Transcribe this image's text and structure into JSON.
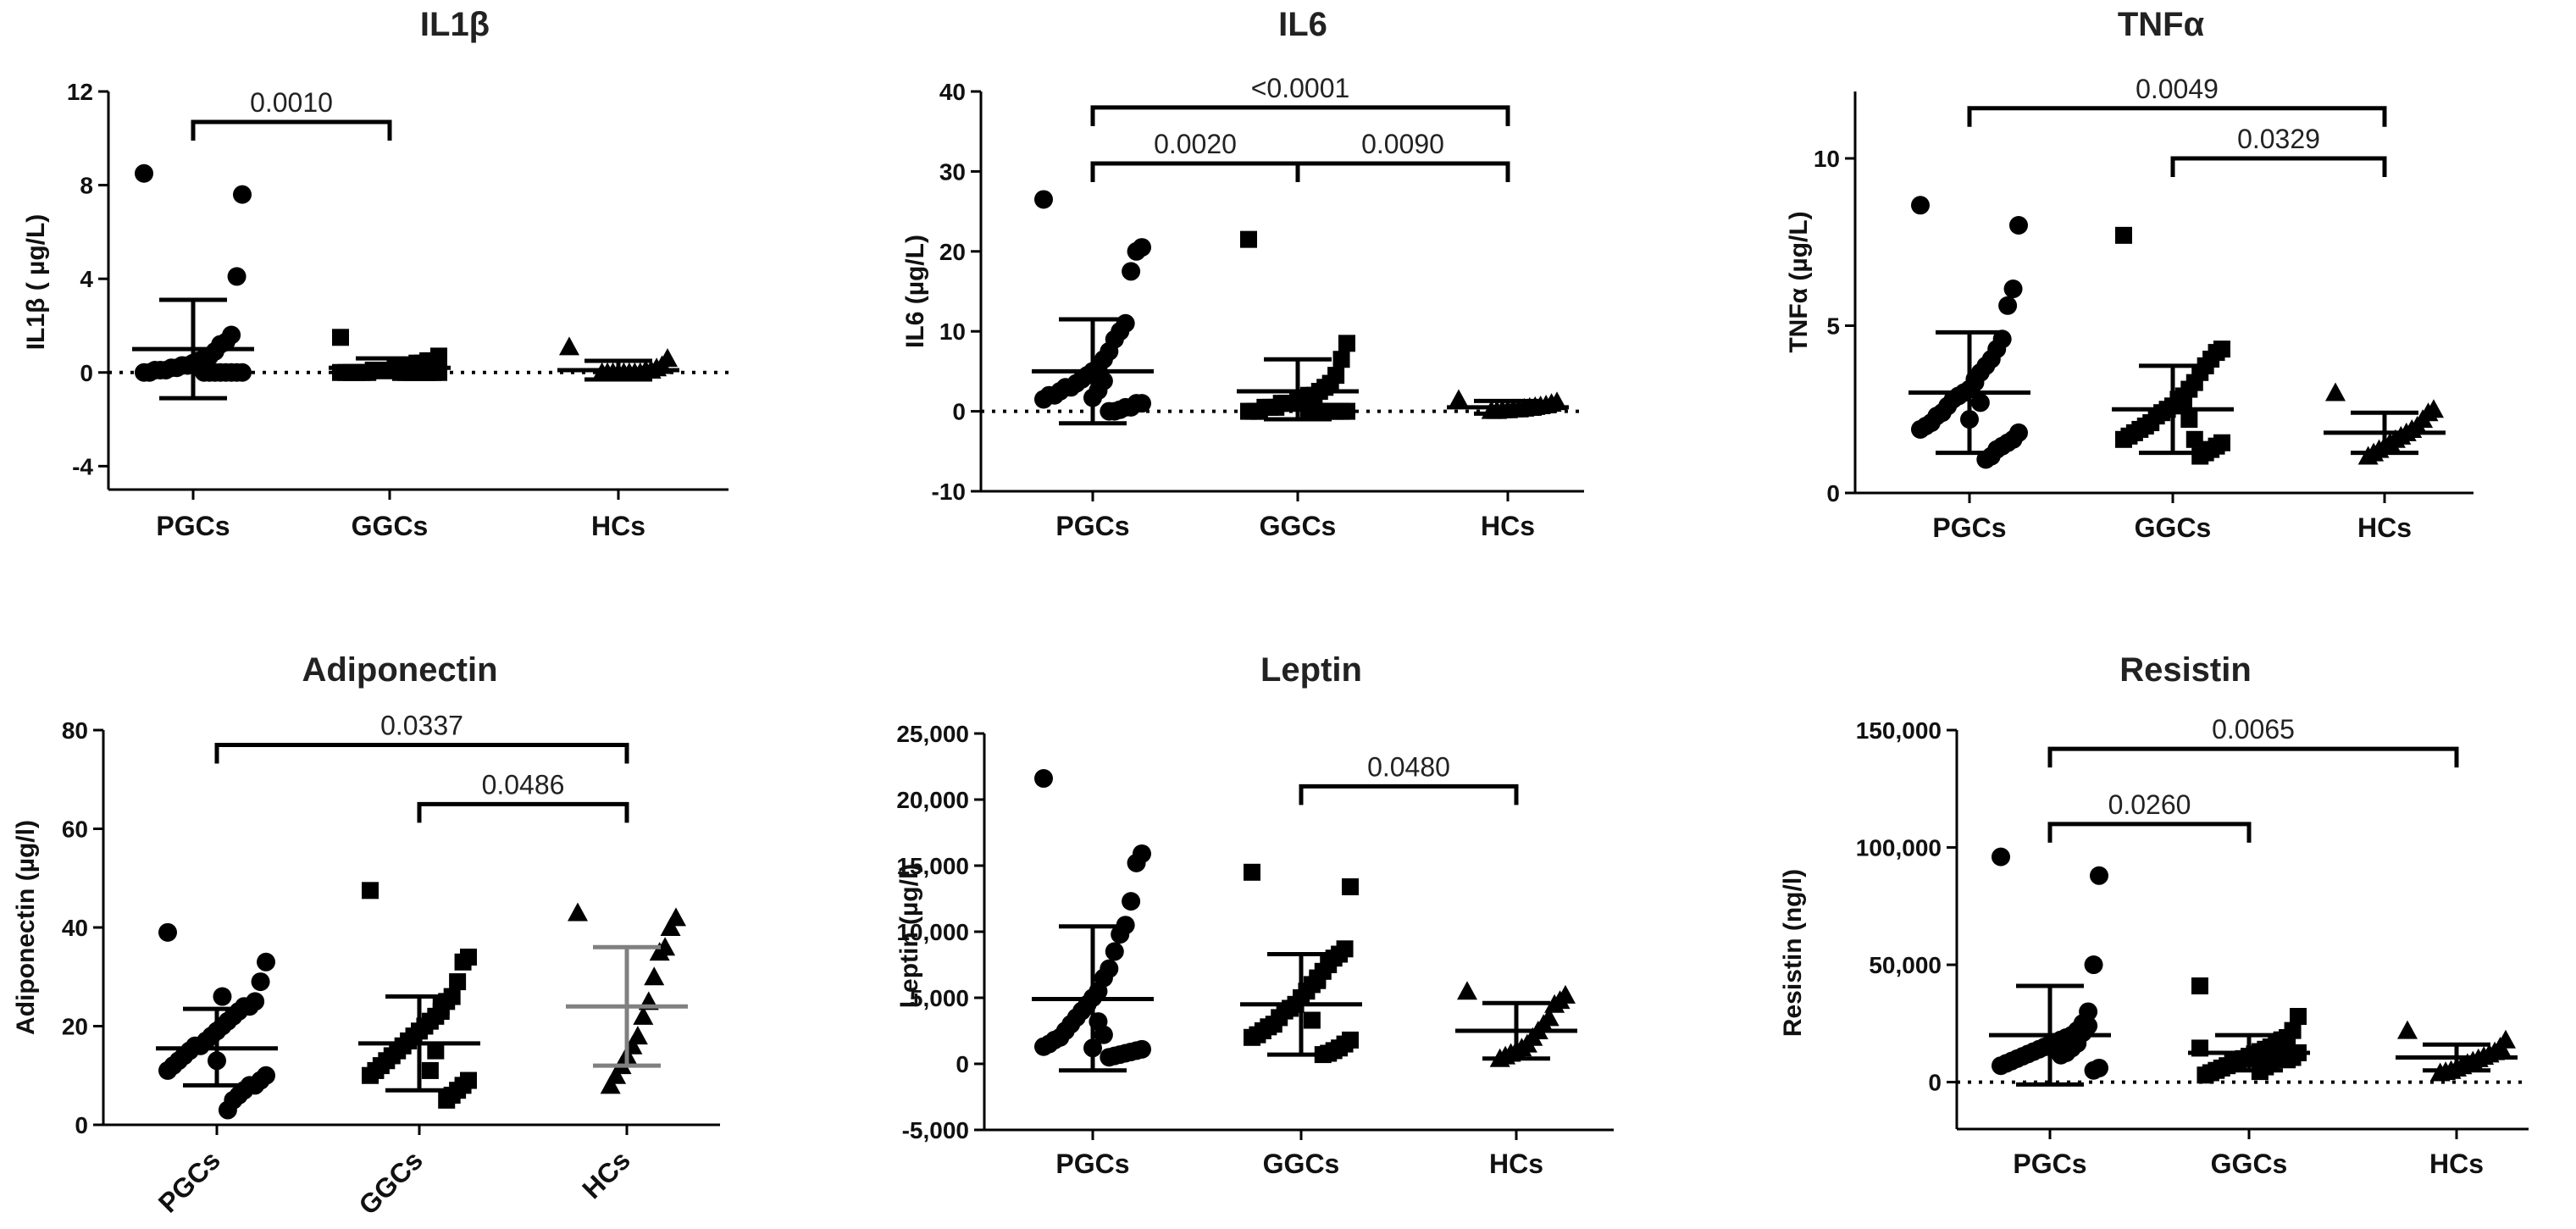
{
  "chart_data": [
    {
      "type": "scatter",
      "title": "IL1β",
      "ylabel": "IL1β ( µg/L)",
      "ylim": [
        -5,
        12
      ],
      "yticks": [
        -4,
        0,
        4,
        8,
        12
      ],
      "ytick_labels": [
        "-4",
        "0",
        "4",
        "8",
        "12"
      ],
      "categories": [
        "PGCs",
        "GGCs",
        "HCs"
      ],
      "x_rotated": false,
      "zero_line": true,
      "series": [
        {
          "name": "PGCs",
          "marker": "circle",
          "mean": 1.0,
          "sd_upper": 3.1,
          "sd_lower": -1.1,
          "values": [
            8.5,
            7.6,
            4.1,
            1.6,
            1.3,
            1.2,
            0.9,
            0.7,
            0.6,
            0.5,
            0.4,
            0.3,
            0.3,
            0.2,
            0.2,
            0.1,
            0.1,
            0.1,
            0.0,
            0.0,
            0.0,
            0.0,
            0.0,
            0.0,
            0.0,
            0.0,
            0.0,
            0.0
          ]
        },
        {
          "name": "GGCs",
          "marker": "square",
          "mean": 0.2,
          "sd_upper": 0.6,
          "sd_lower": -0.2,
          "values": [
            1.5,
            0.7,
            0.5,
            0.5,
            0.4,
            0.4,
            0.3,
            0.2,
            0.2,
            0.2,
            0.1,
            0.1,
            0.1,
            0.1,
            0.0,
            0.0,
            0.0,
            0.0,
            0.0,
            0.0,
            0.0,
            0.0,
            0.0,
            0.0,
            0.0,
            0.0,
            0.0,
            0.0
          ]
        },
        {
          "name": "HCs",
          "marker": "triangle",
          "mean": 0.1,
          "sd_upper": 0.5,
          "sd_lower": -0.3,
          "values": [
            1.1,
            0.6,
            0.3,
            0.2,
            0.1,
            0.1,
            0.0,
            0.0,
            0.0,
            0.0,
            0.0,
            0.0,
            0.0,
            0.0
          ]
        }
      ],
      "comparisons": [
        {
          "from": 0,
          "to": 1,
          "label": "0.0010",
          "y": 10.7
        }
      ]
    },
    {
      "type": "scatter",
      "title": "IL6",
      "ylabel": "IL6 (µg/L)",
      "ylim": [
        -10,
        40
      ],
      "yticks": [
        -10,
        0,
        10,
        20,
        30,
        40
      ],
      "ytick_labels": [
        "-10",
        "0",
        "10",
        "20",
        "30",
        "40"
      ],
      "categories": [
        "PGCs",
        "GGCs",
        "HCs"
      ],
      "x_rotated": false,
      "zero_line": true,
      "series": [
        {
          "name": "PGCs",
          "marker": "circle",
          "mean": 5.0,
          "sd_upper": 11.5,
          "sd_lower": -1.5,
          "values": [
            26.5,
            20.5,
            20.0,
            17.5,
            11.0,
            10.0,
            9.0,
            7.5,
            6.5,
            5.5,
            5.0,
            4.5,
            4.0,
            3.5,
            3.0,
            3.0,
            2.5,
            2.0,
            2.0,
            1.5,
            1.0,
            1.0,
            0.5,
            0.5,
            0.2,
            0.0,
            0.0,
            3.8,
            2.6,
            1.7
          ]
        },
        {
          "name": "GGCs",
          "marker": "square",
          "mean": 2.5,
          "sd_upper": 6.5,
          "sd_lower": -1.0,
          "values": [
            21.5,
            8.5,
            6.5,
            4.5,
            3.5,
            3.0,
            2.5,
            2.0,
            2.0,
            1.5,
            1.5,
            1.0,
            1.0,
            1.0,
            0.5,
            0.5,
            0.5,
            0.0,
            0.0,
            0.0,
            0.0,
            0.0,
            0.0,
            0.0,
            0.0,
            0.0,
            0.0,
            0.0
          ]
        },
        {
          "name": "HCs",
          "marker": "triangle",
          "mean": 0.5,
          "sd_upper": 1.3,
          "sd_lower": -0.3,
          "values": [
            1.5,
            1.2,
            1.0,
            0.8,
            0.7,
            0.6,
            0.5,
            0.4,
            0.3,
            0.3,
            0.2,
            0.2,
            0.1,
            0.1
          ]
        }
      ],
      "comparisons": [
        {
          "from": 0,
          "to": 2,
          "label": "<0.0001",
          "y": 38.0
        },
        {
          "from": 0,
          "to": 1,
          "label": "0.0020",
          "y": 31.0
        },
        {
          "from": 1,
          "to": 2,
          "label": "0.0090",
          "y": 31.0
        }
      ]
    },
    {
      "type": "scatter",
      "title": "TNFα",
      "ylabel": "TNFα  (µg/L)",
      "ylim": [
        0,
        12
      ],
      "yticks": [
        0,
        5,
        10
      ],
      "ytick_labels": [
        "0",
        "5",
        "10"
      ],
      "categories": [
        "PGCs",
        "GGCs",
        "HCs"
      ],
      "x_rotated": false,
      "zero_line": false,
      "series": [
        {
          "name": "PGCs",
          "marker": "circle",
          "mean": 3.0,
          "sd_upper": 4.8,
          "sd_lower": 1.2,
          "values": [
            8.6,
            8.0,
            6.1,
            5.6,
            4.6,
            4.3,
            4.0,
            3.8,
            3.6,
            3.3,
            3.1,
            3.0,
            2.9,
            2.8,
            2.6,
            2.4,
            2.3,
            2.1,
            2.0,
            1.9,
            1.8,
            1.6,
            1.5,
            1.4,
            1.3,
            1.1,
            1.0,
            2.7,
            3.4,
            2.2
          ]
        },
        {
          "name": "GGCs",
          "marker": "square",
          "mean": 2.5,
          "sd_upper": 3.8,
          "sd_lower": 1.2,
          "values": [
            7.7,
            4.3,
            4.2,
            4.0,
            3.8,
            3.6,
            3.3,
            3.1,
            2.9,
            2.8,
            2.6,
            2.5,
            2.4,
            2.3,
            2.1,
            2.0,
            1.9,
            1.8,
            1.7,
            1.6,
            1.5,
            1.4,
            1.3,
            1.2,
            1.1,
            1.6,
            2.2,
            2.7
          ]
        },
        {
          "name": "HCs",
          "marker": "triangle",
          "mean": 1.8,
          "sd_upper": 2.4,
          "sd_lower": 1.2,
          "values": [
            3.0,
            2.5,
            2.4,
            2.2,
            2.0,
            1.9,
            1.8,
            1.7,
            1.6,
            1.5,
            1.4,
            1.3,
            1.2,
            1.1
          ]
        }
      ],
      "comparisons": [
        {
          "from": 0,
          "to": 2,
          "label": "0.0049",
          "y": 11.5
        },
        {
          "from": 1,
          "to": 2,
          "label": "0.0329",
          "y": 10.0
        }
      ]
    },
    {
      "type": "scatter",
      "title": "Adiponectin",
      "ylabel": "Adiponectin (µg/l)",
      "ylim": [
        0,
        80
      ],
      "yticks": [
        0,
        20,
        40,
        60,
        80
      ],
      "ytick_labels": [
        "0",
        "20",
        "40",
        "60",
        "80"
      ],
      "categories": [
        "PGCs",
        "GGCs",
        "HCs"
      ],
      "x_rotated": true,
      "zero_line": false,
      "series": [
        {
          "name": "PGCs",
          "marker": "circle",
          "mean": 15.5,
          "sd_upper": 23.5,
          "sd_lower": 8.0,
          "values": [
            39,
            33,
            29,
            25,
            24,
            24,
            23,
            22,
            21,
            20,
            19,
            18,
            17,
            16,
            16,
            15,
            14,
            13,
            12,
            11,
            10,
            9,
            8,
            8,
            7,
            6,
            5,
            3,
            26,
            13
          ]
        },
        {
          "name": "GGCs",
          "marker": "square",
          "mean": 16.5,
          "sd_upper": 26.0,
          "sd_lower": 7.0,
          "values": [
            47.5,
            34,
            33,
            29,
            26,
            25,
            24,
            22,
            21,
            20,
            19,
            18,
            17,
            16,
            15,
            14,
            13,
            12,
            11,
            10,
            9,
            8,
            7,
            6,
            5,
            23,
            15,
            11
          ]
        },
        {
          "name": "HCs",
          "marker": "triangle",
          "mean": 24.0,
          "sd_upper": 36.0,
          "sd_lower": 12.0,
          "values": [
            43,
            42,
            40,
            36,
            35,
            30,
            25,
            22,
            18,
            16,
            14,
            12,
            10,
            8
          ]
        }
      ],
      "comparisons": [
        {
          "from": 0,
          "to": 2,
          "label": "0.0337",
          "y": 77.0
        },
        {
          "from": 1,
          "to": 2,
          "label": "0.0486",
          "y": 65.0
        }
      ]
    },
    {
      "type": "scatter",
      "title": "Leptin",
      "ylabel": "Leptin (µg/l)",
      "ylim": [
        -5000,
        25000
      ],
      "yticks": [
        -5000,
        0,
        5000,
        10000,
        15000,
        20000,
        25000
      ],
      "ytick_labels": [
        "-5,000",
        "0",
        "5,000",
        "10,000",
        "15,000",
        "20,000",
        "25,000"
      ],
      "categories": [
        "PGCs",
        "GGCs",
        "HCs"
      ],
      "x_rotated": false,
      "zero_line": false,
      "series": [
        {
          "name": "PGCs",
          "marker": "circle",
          "mean": 4900,
          "sd_upper": 10400,
          "sd_lower": -500,
          "values": [
            21600,
            15900,
            15200,
            12300,
            10500,
            9800,
            8500,
            7200,
            6500,
            5500,
            5000,
            4500,
            4000,
            3500,
            3000,
            2500,
            2000,
            1800,
            1500,
            1300,
            1100,
            1000,
            900,
            800,
            700,
            600,
            500,
            2200,
            3200,
            1200
          ]
        },
        {
          "name": "GGCs",
          "marker": "square",
          "mean": 4500,
          "sd_upper": 8300,
          "sd_lower": 700,
          "values": [
            14500,
            13400,
            8700,
            8300,
            8000,
            7500,
            7000,
            6500,
            6000,
            5500,
            5000,
            4500,
            4200,
            4000,
            3500,
            3000,
            2800,
            2500,
            2200,
            2000,
            1800,
            1500,
            1200,
            1000,
            800,
            700,
            6300,
            3300
          ]
        },
        {
          "name": "HCs",
          "marker": "triangle",
          "mean": 2500,
          "sd_upper": 4600,
          "sd_lower": 400,
          "values": [
            5500,
            5200,
            4800,
            4500,
            3500,
            3000,
            2500,
            2000,
            1500,
            1200,
            1000,
            800,
            600,
            400
          ]
        }
      ],
      "comparisons": [
        {
          "from": 1,
          "to": 2,
          "label": "0.0480",
          "y": 21000
        }
      ]
    },
    {
      "type": "scatter",
      "title": "Resistin",
      "ylabel": "Resistin (ng/l)",
      "ylim": [
        -20000,
        150000
      ],
      "yticks": [
        0,
        50000,
        100000,
        150000
      ],
      "ytick_labels": [
        "0",
        "50,000",
        "100,000",
        "150,000"
      ],
      "categories": [
        "PGCs",
        "GGCs",
        "HCs"
      ],
      "x_rotated": false,
      "zero_line": true,
      "series": [
        {
          "name": "PGCs",
          "marker": "circle",
          "mean": 20000,
          "sd_upper": 41000,
          "sd_lower": -1000,
          "values": [
            96000,
            88000,
            50000,
            30000,
            25000,
            22000,
            20000,
            19000,
            18000,
            17000,
            16000,
            15000,
            14000,
            13000,
            12000,
            11000,
            10000,
            9000,
            8000,
            7000,
            6000,
            5000,
            24000,
            21000,
            16500,
            14500,
            12500,
            11500
          ]
        },
        {
          "name": "GGCs",
          "marker": "square",
          "mean": 12500,
          "sd_upper": 20000,
          "sd_lower": 5000,
          "values": [
            41000,
            28000,
            22000,
            19000,
            18000,
            16000,
            15000,
            14000,
            13000,
            12000,
            11000,
            10000,
            9000,
            8000,
            7000,
            6000,
            5000,
            4000,
            3000,
            14500,
            12500,
            10500,
            9500,
            17000,
            11500,
            8500,
            6500,
            4500
          ]
        },
        {
          "name": "HCs",
          "marker": "triangle",
          "mean": 10500,
          "sd_upper": 16000,
          "sd_lower": 5000,
          "values": [
            22000,
            18000,
            15000,
            13000,
            12000,
            11000,
            10000,
            9000,
            8000,
            7000,
            6000,
            5000,
            4500,
            4000
          ]
        }
      ],
      "comparisons": [
        {
          "from": 0,
          "to": 2,
          "label": "0.0065",
          "y": 142000
        },
        {
          "from": 0,
          "to": 1,
          "label": "0.0260",
          "y": 110000
        }
      ]
    }
  ]
}
